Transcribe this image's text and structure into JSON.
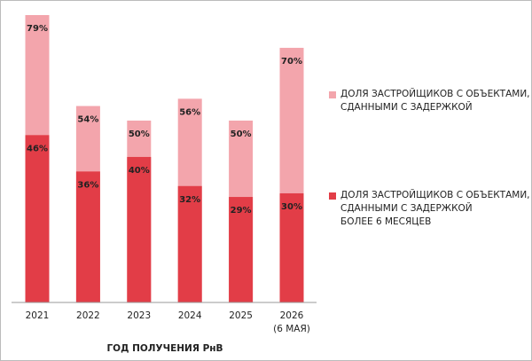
{
  "chart_data": {
    "type": "bar",
    "overlap": true,
    "x_label": "ГОД ПОЛУЧЕНИЯ РнВ",
    "categories": [
      "2021",
      "2022",
      "2023",
      "2024",
      "2025",
      "2026\n(6 МАЯ)"
    ],
    "series": [
      {
        "name": "ДОЛЯ ЗАСТРОЙЩИКОВ С ОБЪЕКТАМИ, СДАННЫМИ С ЗАДЕРЖКОЙ",
        "color": "#f3a5ac",
        "values": [
          79,
          54,
          50,
          56,
          50,
          70
        ],
        "value_labels": [
          "79%",
          "54%",
          "50%",
          "56%",
          "50%",
          "70%"
        ]
      },
      {
        "name": "ДОЛЯ ЗАСТРОЙЩИКОВ С ОБЪЕКТАМИ, СДАННЫМИ С ЗАДЕРЖКОЙ\nБОЛЕЕ 6 МЕСЯЦЕВ",
        "color": "#e23d47",
        "values": [
          46,
          36,
          40,
          32,
          29,
          30
        ],
        "value_labels": [
          "46%",
          "36%",
          "40%",
          "32%",
          "29%",
          "30%"
        ]
      }
    ]
  }
}
